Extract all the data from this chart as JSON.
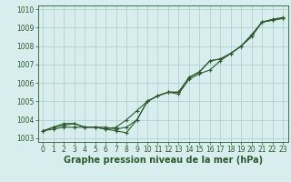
{
  "x": [
    0,
    1,
    2,
    3,
    4,
    5,
    6,
    7,
    8,
    9,
    10,
    11,
    12,
    13,
    14,
    15,
    16,
    17,
    18,
    19,
    20,
    21,
    22,
    23
  ],
  "line1": [
    1003.4,
    1003.6,
    1003.7,
    1003.8,
    1003.6,
    1003.6,
    1003.5,
    1003.6,
    1004.0,
    1004.5,
    1005.0,
    1005.3,
    1005.5,
    1005.5,
    1006.3,
    1006.6,
    1007.2,
    1007.3,
    1007.6,
    1008.0,
    1008.6,
    1009.3,
    1009.4,
    1009.5
  ],
  "line2": [
    1003.4,
    1003.5,
    1003.6,
    1003.6,
    1003.6,
    1003.6,
    1003.6,
    1003.5,
    1003.6,
    1004.0,
    1005.0,
    1005.3,
    1005.5,
    1005.5,
    1006.3,
    1006.6,
    1007.2,
    1007.3,
    1007.6,
    1008.0,
    1008.6,
    1009.3,
    1009.4,
    1009.5
  ],
  "line3": [
    1003.4,
    1003.6,
    1003.8,
    1003.8,
    1003.6,
    1003.6,
    1003.5,
    1003.4,
    1003.3,
    1004.0,
    1005.0,
    1005.3,
    1005.5,
    1005.4,
    1006.2,
    1006.5,
    1006.7,
    1007.2,
    1007.6,
    1008.0,
    1008.5,
    1009.3,
    1009.45,
    1009.55
  ],
  "background_color": "#d8eeee",
  "grid_color": "#a8cccc",
  "line_color": "#2d5a2d",
  "xlabel": "Graphe pression niveau de la mer (hPa)",
  "ylim": [
    1002.8,
    1010.2
  ],
  "xlim": [
    -0.5,
    23.5
  ],
  "yticks": [
    1003,
    1004,
    1005,
    1006,
    1007,
    1008,
    1009,
    1010
  ],
  "xticks": [
    0,
    1,
    2,
    3,
    4,
    5,
    6,
    7,
    8,
    9,
    10,
    11,
    12,
    13,
    14,
    15,
    16,
    17,
    18,
    19,
    20,
    21,
    22,
    23
  ],
  "tick_fontsize": 5.5,
  "xlabel_fontsize": 7
}
